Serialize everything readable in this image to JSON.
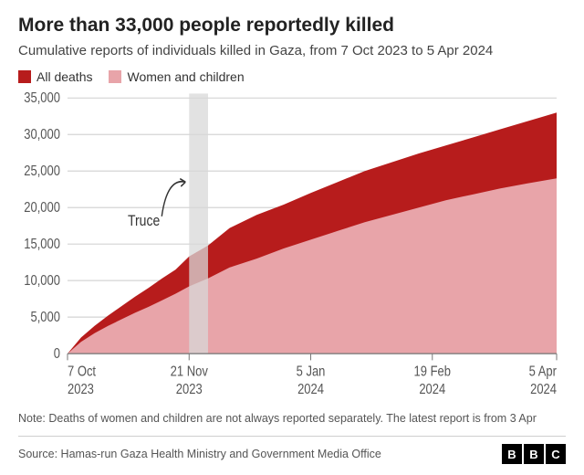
{
  "title": "More than 33,000 people reportedly killed",
  "subtitle": "Cumulative reports of individuals killed in Gaza, from 7 Oct 2023 to 5 Apr 2024",
  "legend": {
    "series1": {
      "label": "All deaths",
      "color": "#b71c1c"
    },
    "series2": {
      "label": "Women and children",
      "color": "#e8a4a9"
    }
  },
  "chart": {
    "type": "area",
    "background_color": "#ffffff",
    "grid_color": "#d4d4d4",
    "axis_color": "#888888",
    "axis_font_size": 13,
    "ylim": [
      0,
      35000
    ],
    "ytick_step": 5000,
    "yticks": [
      0,
      5000,
      10000,
      15000,
      20000,
      25000,
      30000,
      35000
    ],
    "ylabels": [
      "0",
      "5,000",
      "10,000",
      "15,000",
      "20,000",
      "25,000",
      "30,000",
      "35,000"
    ],
    "xlim": [
      0,
      181
    ],
    "xticks": [
      0,
      45,
      90,
      135,
      181
    ],
    "xlabels_line1": [
      "7 Oct",
      "21 Nov",
      "5 Jan",
      "19 Feb",
      "5 Apr"
    ],
    "xlabels_line2": [
      "2023",
      "2023",
      "2024",
      "2024",
      "2024"
    ],
    "truce": {
      "label": "Truce",
      "start": 45,
      "end": 52,
      "color": "#d8d8d8"
    },
    "series_all": {
      "color": "#b71c1c",
      "x": [
        0,
        5,
        10,
        15,
        20,
        25,
        30,
        35,
        40,
        45,
        52,
        60,
        70,
        80,
        90,
        100,
        110,
        120,
        130,
        140,
        150,
        160,
        170,
        181
      ],
      "y": [
        0,
        2200,
        3800,
        5200,
        6500,
        7800,
        9000,
        10300,
        11500,
        13300,
        14800,
        17200,
        19000,
        20400,
        22000,
        23500,
        25000,
        26200,
        27400,
        28500,
        29600,
        30700,
        31800,
        33000
      ]
    },
    "series_wc": {
      "color": "#e8a4a9",
      "x": [
        0,
        5,
        10,
        15,
        20,
        25,
        30,
        35,
        40,
        45,
        52,
        60,
        70,
        80,
        90,
        100,
        110,
        120,
        130,
        140,
        150,
        160,
        170,
        181
      ],
      "y": [
        0,
        1600,
        2800,
        3800,
        4700,
        5600,
        6400,
        7300,
        8200,
        9200,
        10300,
        11800,
        13000,
        14400,
        15600,
        16800,
        18000,
        19000,
        20000,
        21000,
        21800,
        22600,
        23300,
        24000
      ]
    }
  },
  "note": "Note: Deaths of women and children are not always reported separately. The latest report is from 3 Apr",
  "source": "Source: Hamas-run Gaza Health Ministry and Government Media Office",
  "logo": [
    "B",
    "B",
    "C"
  ]
}
